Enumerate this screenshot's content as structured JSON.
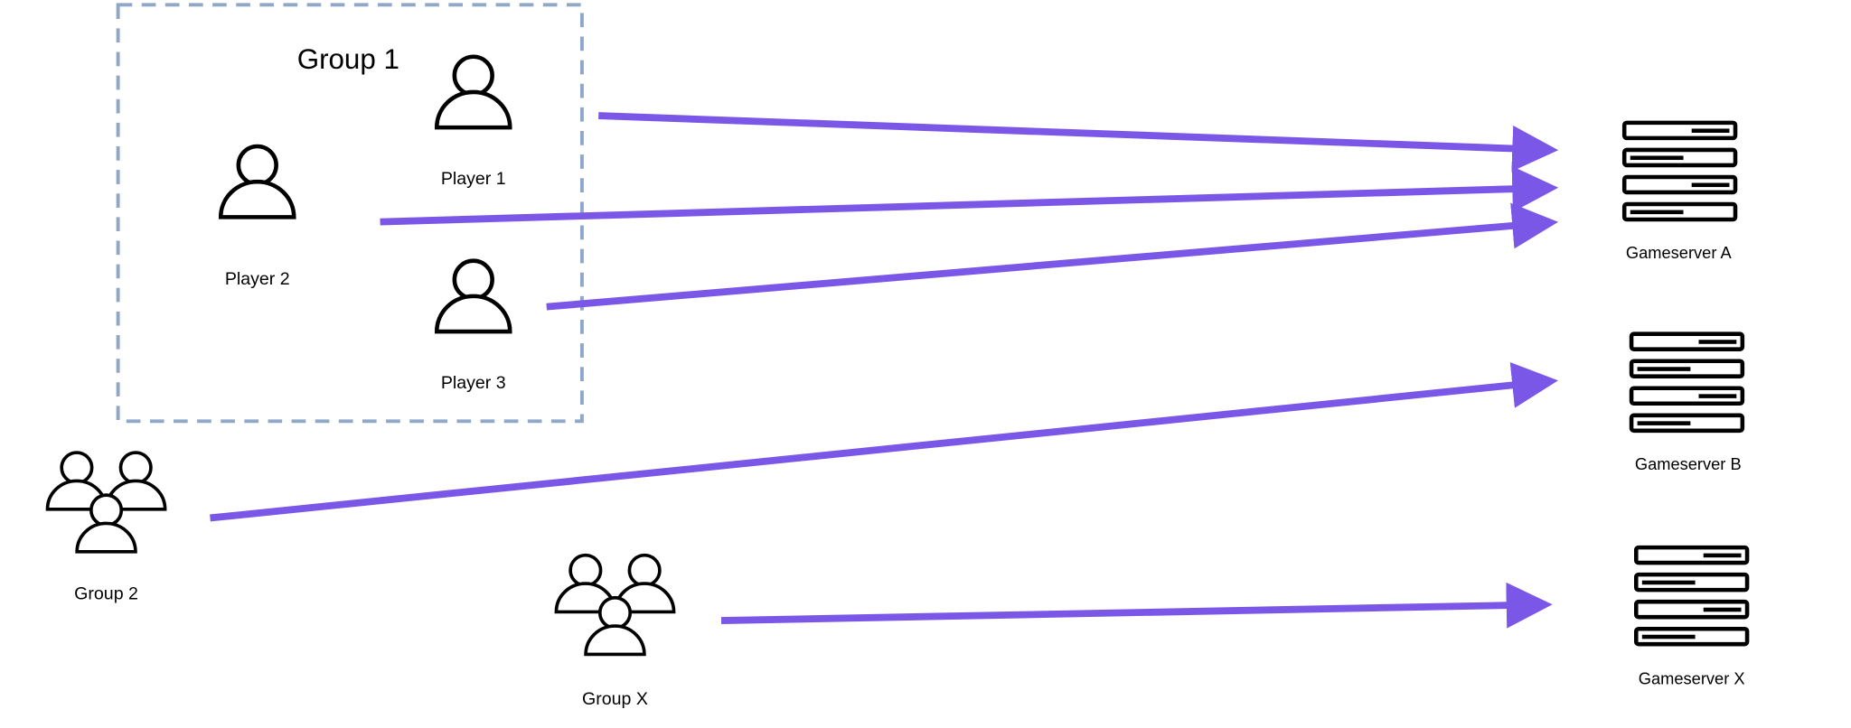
{
  "colors": {
    "arrow": "#7b57e8",
    "group_border": "#8fa8c8",
    "icon": "#000000"
  },
  "group1": {
    "title": "Group 1",
    "players": [
      {
        "label": "Player 1",
        "icon": "person-icon"
      },
      {
        "label": "Player 2",
        "icon": "person-icon"
      },
      {
        "label": "Player 3",
        "icon": "person-icon"
      }
    ]
  },
  "groups": [
    {
      "label": "Group 2",
      "icon": "group-icon"
    },
    {
      "label": "Group X",
      "icon": "group-icon"
    }
  ],
  "servers": [
    {
      "label": "Gameserver A",
      "icon": "server-icon"
    },
    {
      "label": "Gameserver B",
      "icon": "server-icon"
    },
    {
      "label": "Gameserver X",
      "icon": "server-icon"
    }
  ],
  "connections": [
    {
      "from": "Player 1",
      "to": "Gameserver A"
    },
    {
      "from": "Player 2",
      "to": "Gameserver A"
    },
    {
      "from": "Player 3",
      "to": "Gameserver A"
    },
    {
      "from": "Group 2",
      "to": "Gameserver B"
    },
    {
      "from": "Group X",
      "to": "Gameserver X"
    }
  ]
}
